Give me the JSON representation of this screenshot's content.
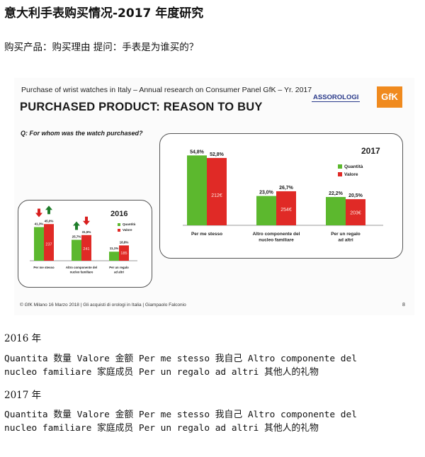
{
  "page": {
    "title": "意大利手表购买情况-2017 年度研究",
    "subtitle": "购买产品：购买理由  提问：手表是为谁买的？"
  },
  "slide": {
    "header": "Purchase of wrist watches in Italy – Annual research on Consumer Panel GfK – Yr. 2017",
    "heading": "PURCHASED PRODUCT: REASON TO BUY",
    "question": "Q: For whom was the watch purchased?",
    "logo_assoorologi": "ASSOROLOGI",
    "logo_gfk": "GfK",
    "footer": "© GfK Milano 16 Marzo 2018 | Gli acquisti di orologi in Italia | Giampaolo Falconio",
    "page_number": "8"
  },
  "colors": {
    "quantita": "#5cb82e",
    "valore": "#e02a26",
    "arrow_up": "#1e7d2a",
    "arrow_down": "#d81e1e"
  },
  "chart_data": [
    {
      "type": "bar",
      "title": "2017",
      "categories": [
        "Per me stesso",
        "Altro componente del nucleo familiare",
        "Per un regalo ad altri"
      ],
      "series": [
        {
          "name": "Quantità",
          "values": [
            54.8,
            23.0,
            22.2
          ],
          "labels": [
            "54,8%",
            "23,0%",
            "22,2%"
          ]
        },
        {
          "name": "Valore",
          "values": [
            52.8,
            26.7,
            20.5
          ],
          "labels": [
            "52,8%",
            "26,7%",
            "20,5%"
          ]
        }
      ],
      "bar_inner_labels": [
        "212€",
        "254€",
        "203€"
      ],
      "ylim": [
        0,
        60
      ]
    },
    {
      "type": "bar",
      "title": "2016",
      "categories": [
        "Per me stesso",
        "Altro componente del nucleo familiare",
        "Per un regalo ad altri"
      ],
      "series": [
        {
          "name": "Quantità",
          "values": [
            41.3,
            25.7,
            11.1
          ],
          "labels": [
            "41,3%",
            "25,7%",
            "11,1%"
          ]
        },
        {
          "name": "Valore",
          "values": [
            45.0,
            31.5,
            18.8
          ],
          "labels": [
            "45,0%",
            "31,5%",
            "18,8%"
          ]
        }
      ],
      "bar_inner_labels": [
        "237",
        "241",
        "185"
      ],
      "arrows": [
        {
          "direction": "down",
          "color": "down"
        },
        {
          "direction": "up",
          "color": "up"
        },
        {
          "direction": "up",
          "color": "up"
        },
        {
          "direction": "down",
          "color": "down"
        }
      ],
      "ylim": [
        0,
        60
      ]
    }
  ],
  "sections": [
    {
      "heading": "2016 年",
      "lines": [
        "Quantita 数量 Valore 金额 Per me stesso 我自己 Altro componente del",
        "nucleo familiare 家庭成员  Per un regalo ad altri 其他人的礼物"
      ]
    },
    {
      "heading": "2017 年",
      "lines": [
        "Quantita 数量  Valore 金额 Per me stesso 我自己 Altro componente del",
        "nucleo familiare 家庭成员 Per un regalo ad altri 其他人的礼物"
      ]
    }
  ]
}
